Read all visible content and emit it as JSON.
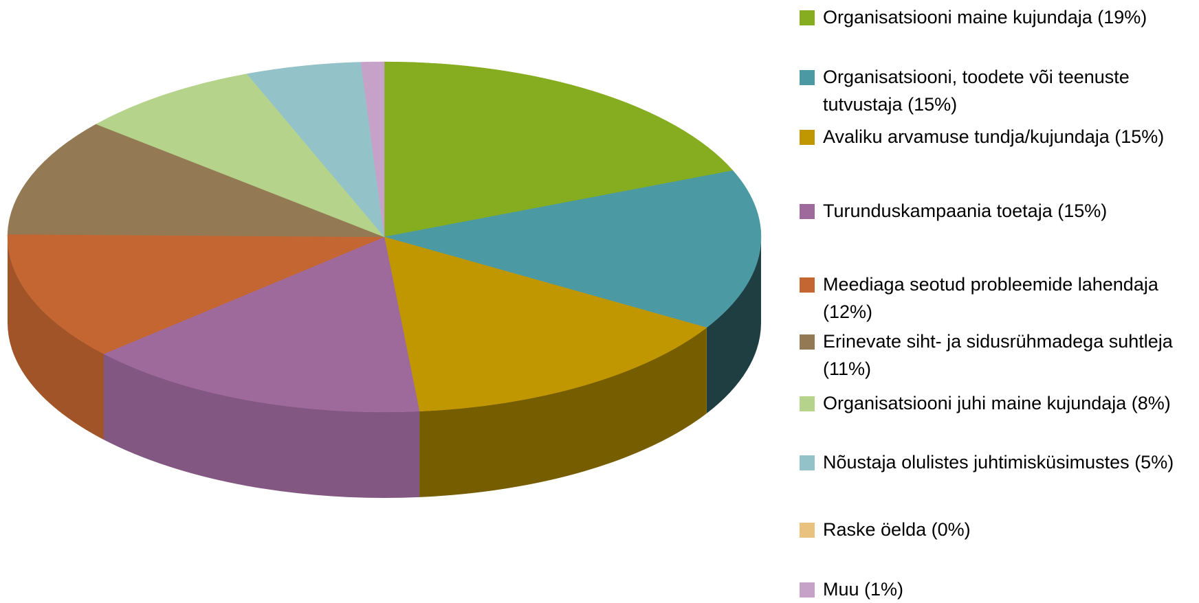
{
  "chart_data": {
    "type": "pie3d",
    "categories": [
      "Organisatsiooni maine kujundaja",
      "Organisatsiooni, toodete või teenuste tutvustaja",
      "Avaliku arvamuse tundja/kujundaja",
      "Turunduskampaania toetaja",
      "Meediaga seotud probleemide lahendaja",
      "Erinevate siht- ja sidusrühmadega suhtleja",
      "Organisatsiooni juhi maine kujundaja",
      "Nõustaja olulistes juhtimisküsimustes",
      "Raske öelda",
      "Muu"
    ],
    "values": [
      19,
      15,
      15,
      15,
      12,
      11,
      8,
      5,
      0,
      1
    ],
    "value_labels": [
      "(19%)",
      "(15%)",
      "(15%)",
      "(15%)",
      "(12%)",
      "(11%)",
      "(8%)",
      "(5%)",
      "(0%)",
      "(1%)"
    ],
    "colors": [
      "#86ac1f",
      "#4b9aa3",
      "#c09700",
      "#9e6a9c",
      "#c46631",
      "#937a55",
      "#b5d38b",
      "#93c3c8",
      "#e8c27e",
      "#c7a2c8"
    ],
    "legend": "right"
  }
}
